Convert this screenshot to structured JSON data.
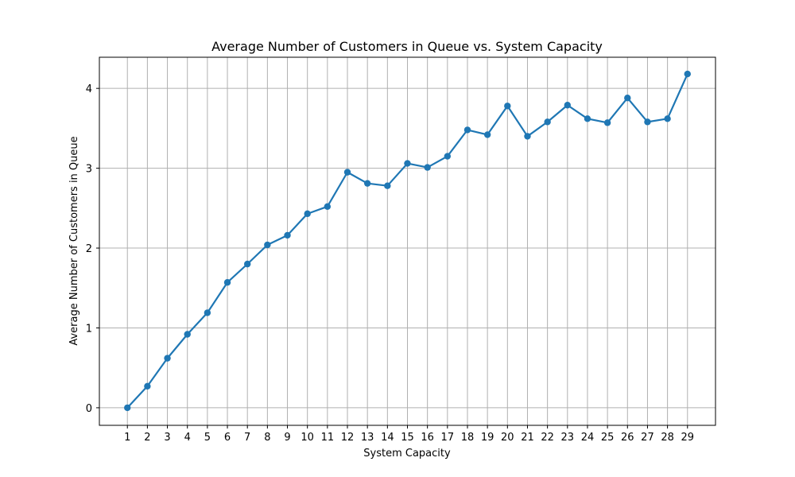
{
  "chart_data": {
    "type": "line",
    "title": "Average Number of Customers in Queue vs. System Capacity",
    "xlabel": "System Capacity",
    "ylabel": "Average Number of Customers in Queue",
    "x": [
      1,
      2,
      3,
      4,
      5,
      6,
      7,
      8,
      9,
      10,
      11,
      12,
      13,
      14,
      15,
      16,
      17,
      18,
      19,
      20,
      21,
      22,
      23,
      24,
      25,
      26,
      27,
      28,
      29
    ],
    "series": [
      {
        "values": [
          0.0,
          0.27,
          0.62,
          0.92,
          1.19,
          1.57,
          1.8,
          2.04,
          2.16,
          2.43,
          2.52,
          2.95,
          2.81,
          2.78,
          3.06,
          3.01,
          3.15,
          3.48,
          3.42,
          3.78,
          3.4,
          3.58,
          3.79,
          3.62,
          3.57,
          3.88,
          3.58,
          3.62,
          4.18
        ],
        "color": "#1f77b4"
      }
    ],
    "xlim": [
      -0.4,
      30.4
    ],
    "ylim": [
      -0.22,
      4.39
    ],
    "yticks": [
      0,
      1,
      2,
      3,
      4
    ],
    "grid": true,
    "marker": "circle"
  }
}
